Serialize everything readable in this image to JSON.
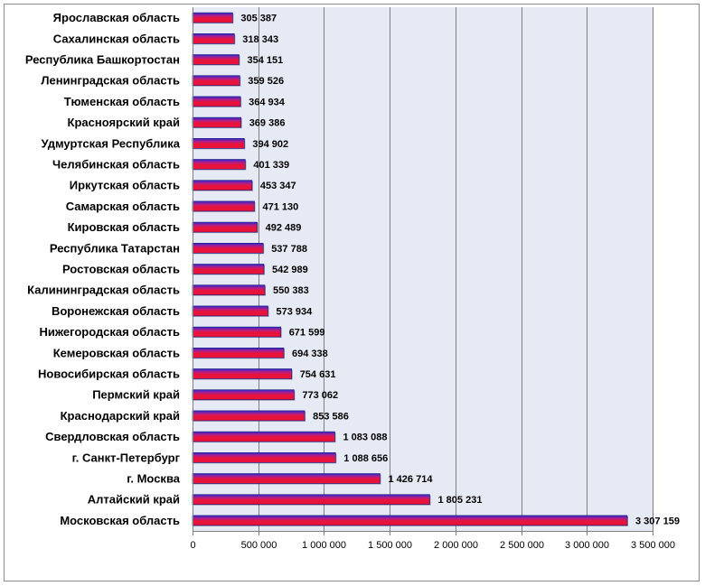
{
  "chart_data": {
    "type": "bar",
    "orientation": "horizontal",
    "categories": [
      "Ярославская область",
      "Сахалинская область",
      "Республика Башкортостан",
      "Ленинградская область",
      "Тюменская область",
      "Красноярский край",
      "Удмуртская Республика",
      "Челябинская область",
      "Иркутская область",
      "Самарская область",
      "Кировская область",
      "Республика Татарстан",
      "Ростовская область",
      "Калининградская область",
      "Воронежская область",
      "Нижегородская область",
      "Кемеровская область",
      "Новосибирская область",
      "Пермский край",
      "Краснодарский край",
      "Свердловская область",
      "г. Санкт-Петербург",
      "г. Москва",
      "Алтайский край",
      "Московская область"
    ],
    "values": [
      305387,
      318343,
      354151,
      359526,
      364934,
      369386,
      394902,
      401339,
      453347,
      471130,
      492489,
      537788,
      542989,
      550383,
      573934,
      671599,
      694338,
      754631,
      773062,
      853586,
      1083088,
      1088656,
      1426714,
      1805231,
      3307159
    ],
    "value_labels": [
      "305 387",
      "318 343",
      "354 151",
      "359 526",
      "364 934",
      "369 386",
      "394 902",
      "401 339",
      "453 347",
      "471 130",
      "492 489",
      "537 788",
      "542 989",
      "550 383",
      "573 934",
      "671 599",
      "694 338",
      "754 631",
      "773 062",
      "853 586",
      "1 083 088",
      "1 088 656",
      "1 426 714",
      "1 805 231",
      "3 307 159"
    ],
    "xlim": [
      0,
      3500000
    ],
    "xticks": [
      0,
      500000,
      1000000,
      1500000,
      2000000,
      2500000,
      3000000,
      3500000
    ],
    "xtick_labels": [
      "0",
      "500 000",
      "1 000 000",
      "1 500 000",
      "2 000 000",
      "2 500 000",
      "3 000 000",
      "3 500 000"
    ],
    "grid": "vertical",
    "legend": "none",
    "title": "",
    "xlabel": "",
    "ylabel": "",
    "colors": {
      "plot_background": "#e6eaf5",
      "gridline": "#7f7f7f",
      "bar_top": "#2a2ac8",
      "bar_bottom": "#e8133a",
      "bar_stripe": "#b01e8a"
    }
  }
}
